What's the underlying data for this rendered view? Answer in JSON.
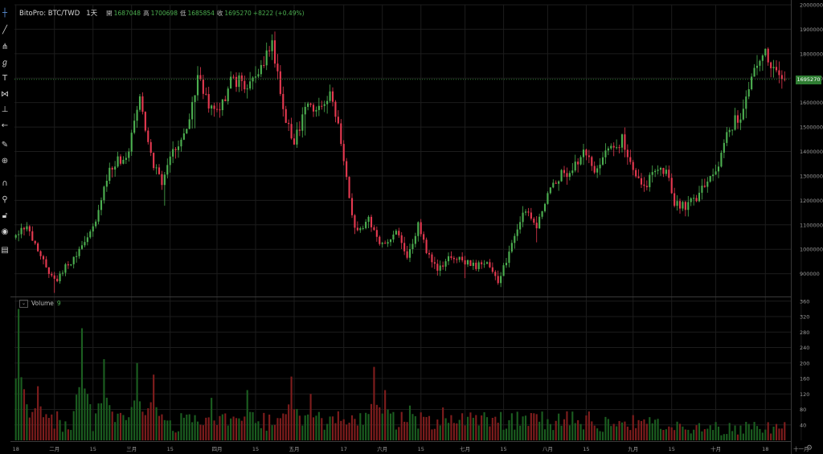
{
  "header": {
    "symbol": "BitoPro: BTC/TWD",
    "interval": "1天",
    "open_label": "開",
    "open_value": "1687048",
    "high_label": "高",
    "high_value": "1700698",
    "low_label": "低",
    "low_value": "1685854",
    "close_label": "收",
    "close_value": "1695270",
    "change": "+8222 (+0.49%)"
  },
  "last_price_badge": "1695270",
  "volume_pane": {
    "collapse_icon": "chevron-down-icon",
    "label": "Volume",
    "value": "9"
  },
  "toolbar": {
    "icons": [
      "crosshair-icon",
      "trend-line-icon",
      "pitchfork-icon",
      "brush-icon",
      "text-icon",
      "pattern-icon",
      "measure-icon",
      "back-arrow-icon",
      "pencil-icon",
      "zoom-icon",
      "magnet-icon",
      "lock-drawing-icon",
      "lock-icon",
      "eye-icon",
      "trash-icon"
    ]
  },
  "colors": {
    "up": "#4caf50",
    "down": "#e53950",
    "vol_up": "#1b5e20",
    "vol_down": "#7f1d1d",
    "grid": "#1c1c1c",
    "badge": "#2e7d32"
  },
  "chart_data": {
    "type": "candlestick",
    "price_axis": {
      "ylim": [
        810000,
        2000000
      ],
      "ticks": [
        900000,
        1000000,
        1100000,
        1200000,
        1300000,
        1400000,
        1500000,
        1600000,
        1700000,
        1800000,
        1900000,
        2000000
      ],
      "tick_labels": [
        "900000",
        "1000000",
        "1100000",
        "1200000",
        "1300000",
        "1400000",
        "1500000",
        "1600000",
        "1700000",
        "1800000",
        "1900000",
        "2000000"
      ]
    },
    "volume_axis": {
      "ylim": [
        0,
        370
      ],
      "ticks": [
        40,
        80,
        120,
        160,
        200,
        240,
        280,
        320,
        360
      ],
      "tick_labels": [
        "40",
        "80",
        "120",
        "160",
        "200",
        "240",
        "280",
        "320",
        "360"
      ]
    },
    "x_axis": {
      "tick_labels": [
        "18",
        "二月",
        "15",
        "三月",
        "15",
        "四月",
        "15",
        "五月",
        "17",
        "六月",
        "15",
        "七月",
        "15",
        "八月",
        "15",
        "九月",
        "15",
        "十月",
        "18",
        "十一月"
      ],
      "tick_day_index": [
        0,
        14,
        28,
        42,
        56,
        73,
        87,
        101,
        119,
        133,
        147,
        163,
        177,
        193,
        207,
        224,
        238,
        254,
        272,
        285
      ]
    },
    "grid": true,
    "last_price": 1695270,
    "anchors": [
      [
        0,
        1060000
      ],
      [
        4,
        1100000
      ],
      [
        10,
        950000
      ],
      [
        14,
        870000
      ],
      [
        20,
        950000
      ],
      [
        24,
        1000000
      ],
      [
        29,
        1100000
      ],
      [
        34,
        1340000
      ],
      [
        40,
        1380000
      ],
      [
        45,
        1600000
      ],
      [
        50,
        1350000
      ],
      [
        53,
        1260000
      ],
      [
        57,
        1400000
      ],
      [
        61,
        1450000
      ],
      [
        66,
        1700000
      ],
      [
        70,
        1600000
      ],
      [
        74,
        1550000
      ],
      [
        78,
        1700000
      ],
      [
        84,
        1680000
      ],
      [
        88,
        1720000
      ],
      [
        93,
        1850000
      ],
      [
        97,
        1550000
      ],
      [
        101,
        1430000
      ],
      [
        105,
        1580000
      ],
      [
        110,
        1570000
      ],
      [
        114,
        1640000
      ],
      [
        118,
        1450000
      ],
      [
        121,
        1200000
      ],
      [
        124,
        1060000
      ],
      [
        128,
        1120000
      ],
      [
        133,
        1010000
      ],
      [
        138,
        1080000
      ],
      [
        142,
        960000
      ],
      [
        146,
        1100000
      ],
      [
        149,
        1000000
      ],
      [
        153,
        920000
      ],
      [
        158,
        980000
      ],
      [
        162,
        960000
      ],
      [
        166,
        930000
      ],
      [
        171,
        950000
      ],
      [
        175,
        860000
      ],
      [
        177,
        930000
      ],
      [
        182,
        1080000
      ],
      [
        185,
        1170000
      ],
      [
        189,
        1100000
      ],
      [
        193,
        1230000
      ],
      [
        197,
        1300000
      ],
      [
        202,
        1320000
      ],
      [
        206,
        1390000
      ],
      [
        210,
        1320000
      ],
      [
        214,
        1380000
      ],
      [
        220,
        1450000
      ],
      [
        224,
        1330000
      ],
      [
        228,
        1260000
      ],
      [
        232,
        1320000
      ],
      [
        236,
        1330000
      ],
      [
        239,
        1180000
      ],
      [
        244,
        1180000
      ],
      [
        247,
        1210000
      ],
      [
        251,
        1280000
      ],
      [
        255,
        1350000
      ],
      [
        259,
        1500000
      ],
      [
        264,
        1570000
      ],
      [
        268,
        1720000
      ],
      [
        272,
        1810000
      ],
      [
        275,
        1720000
      ],
      [
        279,
        1695270
      ]
    ],
    "volume_bursts": [
      [
        1,
        340
      ],
      [
        8,
        140
      ],
      [
        24,
        290
      ],
      [
        32,
        210
      ],
      [
        44,
        200
      ],
      [
        50,
        170
      ],
      [
        71,
        110
      ],
      [
        84,
        130
      ],
      [
        100,
        165
      ],
      [
        107,
        120
      ],
      [
        130,
        190
      ],
      [
        134,
        130
      ],
      [
        143,
        90
      ],
      [
        155,
        85
      ],
      [
        162,
        70
      ],
      [
        171,
        60
      ],
      [
        188,
        70
      ],
      [
        200,
        75
      ],
      [
        208,
        70
      ],
      [
        219,
        50
      ],
      [
        230,
        60
      ],
      [
        237,
        55
      ],
      [
        252,
        60
      ],
      [
        265,
        58
      ],
      [
        276,
        65
      ]
    ]
  }
}
